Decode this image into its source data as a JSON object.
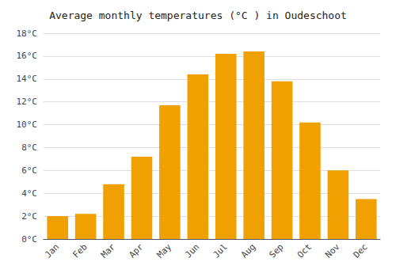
{
  "chart_data": {
    "type": "bar",
    "title": "Average monthly temperatures (°C ) in Oudeschoot",
    "categories": [
      "Jan",
      "Feb",
      "Mar",
      "Apr",
      "May",
      "Jun",
      "Jul",
      "Aug",
      "Sep",
      "Oct",
      "Nov",
      "Dec"
    ],
    "values": [
      2.0,
      2.2,
      4.8,
      7.2,
      11.7,
      14.4,
      16.2,
      16.4,
      13.8,
      10.2,
      6.0,
      3.5
    ],
    "color": "#F0A000",
    "ylim": [
      0,
      18
    ],
    "yticks": [
      {
        "value": 0,
        "label": "0°C"
      },
      {
        "value": 2,
        "label": "2°C"
      },
      {
        "value": 4,
        "label": "4°C"
      },
      {
        "value": 6,
        "label": "6°C"
      },
      {
        "value": 8,
        "label": "8°C"
      },
      {
        "value": 10,
        "label": "10°C"
      },
      {
        "value": 12,
        "label": "12°C"
      },
      {
        "value": 14,
        "label": "14°C"
      },
      {
        "value": 16,
        "label": "16°C"
      },
      {
        "value": 18,
        "label": "18°C"
      }
    ],
    "grid": true
  }
}
